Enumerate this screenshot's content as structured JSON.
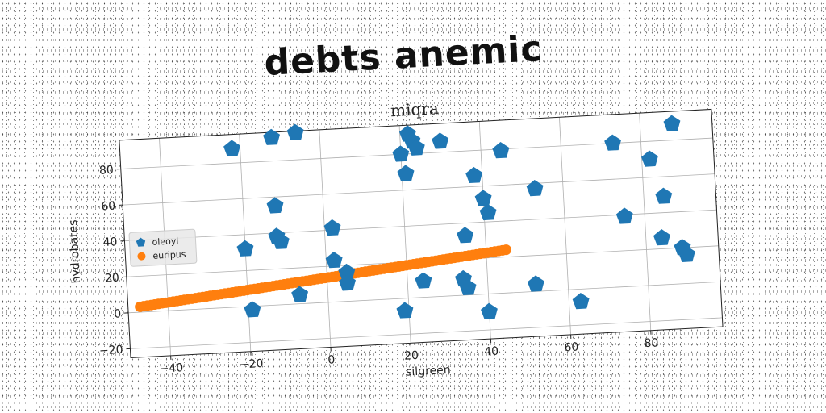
{
  "title": "debts anemic",
  "chart_data": {
    "type": "scatter",
    "title": "miqra",
    "xlabel": "silgreen",
    "ylabel": "hydrobates",
    "xlim": [
      -50,
      98
    ],
    "ylim": [
      -25,
      96
    ],
    "x_ticks": [
      -40,
      -20,
      0,
      20,
      40,
      60,
      80
    ],
    "y_ticks": [
      -20,
      0,
      20,
      40,
      60,
      80
    ],
    "grid": true,
    "legend_position": "center-left",
    "series": [
      {
        "name": "oleoyl",
        "marker": "pentagon",
        "color": "#1f77b4",
        "points": [
          [
            -22,
            88
          ],
          [
            -20,
            32
          ],
          [
            -19,
            -2
          ],
          [
            -12,
            93
          ],
          [
            -12,
            55
          ],
          [
            -12,
            38
          ],
          [
            -11,
            35
          ],
          [
            -6,
            95
          ],
          [
            -7,
            5
          ],
          [
            2,
            41
          ],
          [
            2,
            23
          ],
          [
            5,
            16
          ],
          [
            5,
            10
          ],
          [
            20,
            80
          ],
          [
            21,
            69
          ],
          [
            22,
            91
          ],
          [
            23,
            87
          ],
          [
            24,
            83
          ],
          [
            30,
            86
          ],
          [
            35,
            33
          ],
          [
            38,
            66
          ],
          [
            40,
            53
          ],
          [
            41,
            45
          ],
          [
            45,
            79
          ],
          [
            53,
            57
          ],
          [
            24,
            9
          ],
          [
            34,
            9
          ],
          [
            35,
            4
          ],
          [
            19,
            -7
          ],
          [
            40,
            -10
          ],
          [
            52,
            4
          ],
          [
            63,
            -7
          ],
          [
            73,
            80
          ],
          [
            75,
            39
          ],
          [
            82,
            70
          ],
          [
            84,
            26
          ],
          [
            85,
            49
          ],
          [
            88,
            89
          ],
          [
            89,
            20
          ],
          [
            90,
            16
          ]
        ]
      },
      {
        "name": "euripus",
        "marker": "circle",
        "color": "#ff7f0e",
        "line": {
          "x_start": -47,
          "x_end": 45,
          "y_start": 3,
          "y_end": 24,
          "count": 100
        }
      }
    ]
  }
}
